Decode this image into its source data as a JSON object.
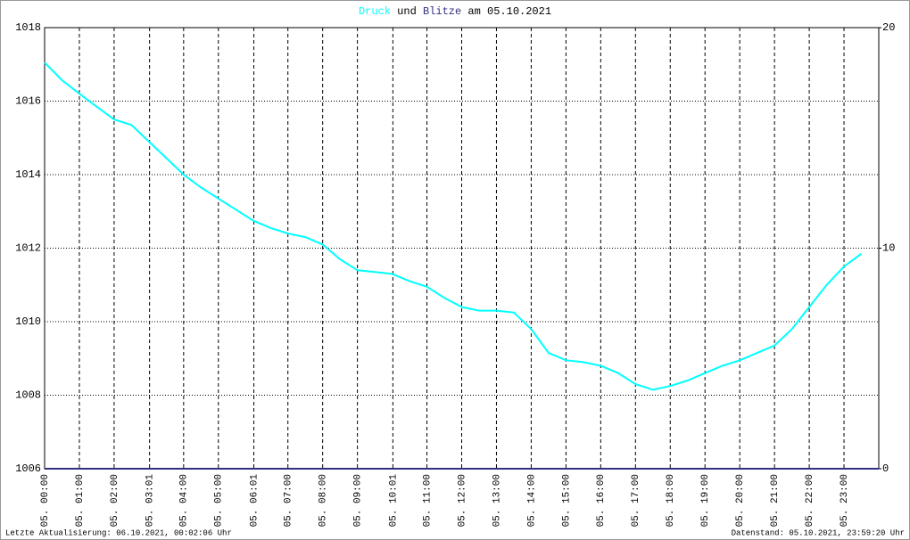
{
  "chart_data": {
    "type": "line",
    "title_words": [
      "und",
      "am 05.10.2021"
    ],
    "footer_left": "Letzte Aktualisierung: 06.10.2021, 00:02:06 Uhr",
    "footer_right": "Datenstand: 05.10.2021, 23:59:20 Uhr",
    "xlim": [
      0,
      24
    ],
    "xticks": [
      {
        "value": 0,
        "label": "05. 00:00"
      },
      {
        "value": 1,
        "label": "05. 01:00"
      },
      {
        "value": 2,
        "label": "05. 02:00"
      },
      {
        "value": 3.02,
        "label": "05. 03:01"
      },
      {
        "value": 4,
        "label": "05. 04:00"
      },
      {
        "value": 5,
        "label": "05. 05:00"
      },
      {
        "value": 6.02,
        "label": "05. 06:01"
      },
      {
        "value": 7,
        "label": "05. 07:00"
      },
      {
        "value": 8,
        "label": "05. 08:00"
      },
      {
        "value": 9,
        "label": "05. 09:00"
      },
      {
        "value": 10.02,
        "label": "05. 10:01"
      },
      {
        "value": 11,
        "label": "05. 11:00"
      },
      {
        "value": 12,
        "label": "05. 12:00"
      },
      {
        "value": 13,
        "label": "05. 13:00"
      },
      {
        "value": 14,
        "label": "05. 14:00"
      },
      {
        "value": 15,
        "label": "05. 15:00"
      },
      {
        "value": 16,
        "label": "05. 16:00"
      },
      {
        "value": 17,
        "label": "05. 17:00"
      },
      {
        "value": 18,
        "label": "05. 18:00"
      },
      {
        "value": 19,
        "label": "05. 19:00"
      },
      {
        "value": 20,
        "label": "05. 20:00"
      },
      {
        "value": 21,
        "label": "05. 21:00"
      },
      {
        "value": 22,
        "label": "05. 22:00"
      },
      {
        "value": 23,
        "label": "05. 23:00"
      }
    ],
    "ylim": [
      1006,
      1018
    ],
    "yticks": [
      1006,
      1008,
      1010,
      1012,
      1014,
      1016,
      1018
    ],
    "y2lim": [
      0,
      20
    ],
    "y2ticks": [
      0,
      10,
      20
    ],
    "grid": true,
    "series": [
      {
        "name": "Druck",
        "color": "#00ffff",
        "x": [
          0,
          0.5,
          1,
          1.5,
          2,
          2.5,
          3,
          3.5,
          4,
          4.5,
          5,
          5.5,
          6,
          6.5,
          7,
          7.5,
          8,
          8.5,
          9,
          9.5,
          10,
          10.5,
          11,
          11.5,
          12,
          12.5,
          13,
          13.5,
          14,
          14.5,
          15,
          15.5,
          16,
          16.5,
          17,
          17.5,
          18,
          18.5,
          19,
          19.5,
          20,
          20.5,
          21,
          21.5,
          22,
          22.5,
          23,
          23.5
        ],
        "values": [
          1017.05,
          1016.57,
          1016.2,
          1015.85,
          1015.5,
          1015.35,
          1014.9,
          1014.45,
          1014.0,
          1013.65,
          1013.35,
          1013.05,
          1012.75,
          1012.55,
          1012.4,
          1012.3,
          1012.1,
          1011.7,
          1011.4,
          1011.35,
          1011.3,
          1011.1,
          1010.95,
          1010.65,
          1010.4,
          1010.3,
          1010.3,
          1010.25,
          1009.8,
          1009.15,
          1008.95,
          1008.9,
          1008.8,
          1008.6,
          1008.3,
          1008.15,
          1008.25,
          1008.4,
          1008.6,
          1008.8,
          1008.95,
          1009.15,
          1009.35,
          1009.8,
          1010.4,
          1011.0,
          1011.5,
          1011.85
        ]
      },
      {
        "name": "Blitze",
        "color": "#303080",
        "axis": "y2",
        "x": [
          0,
          24
        ],
        "values": [
          0,
          0
        ]
      }
    ]
  }
}
